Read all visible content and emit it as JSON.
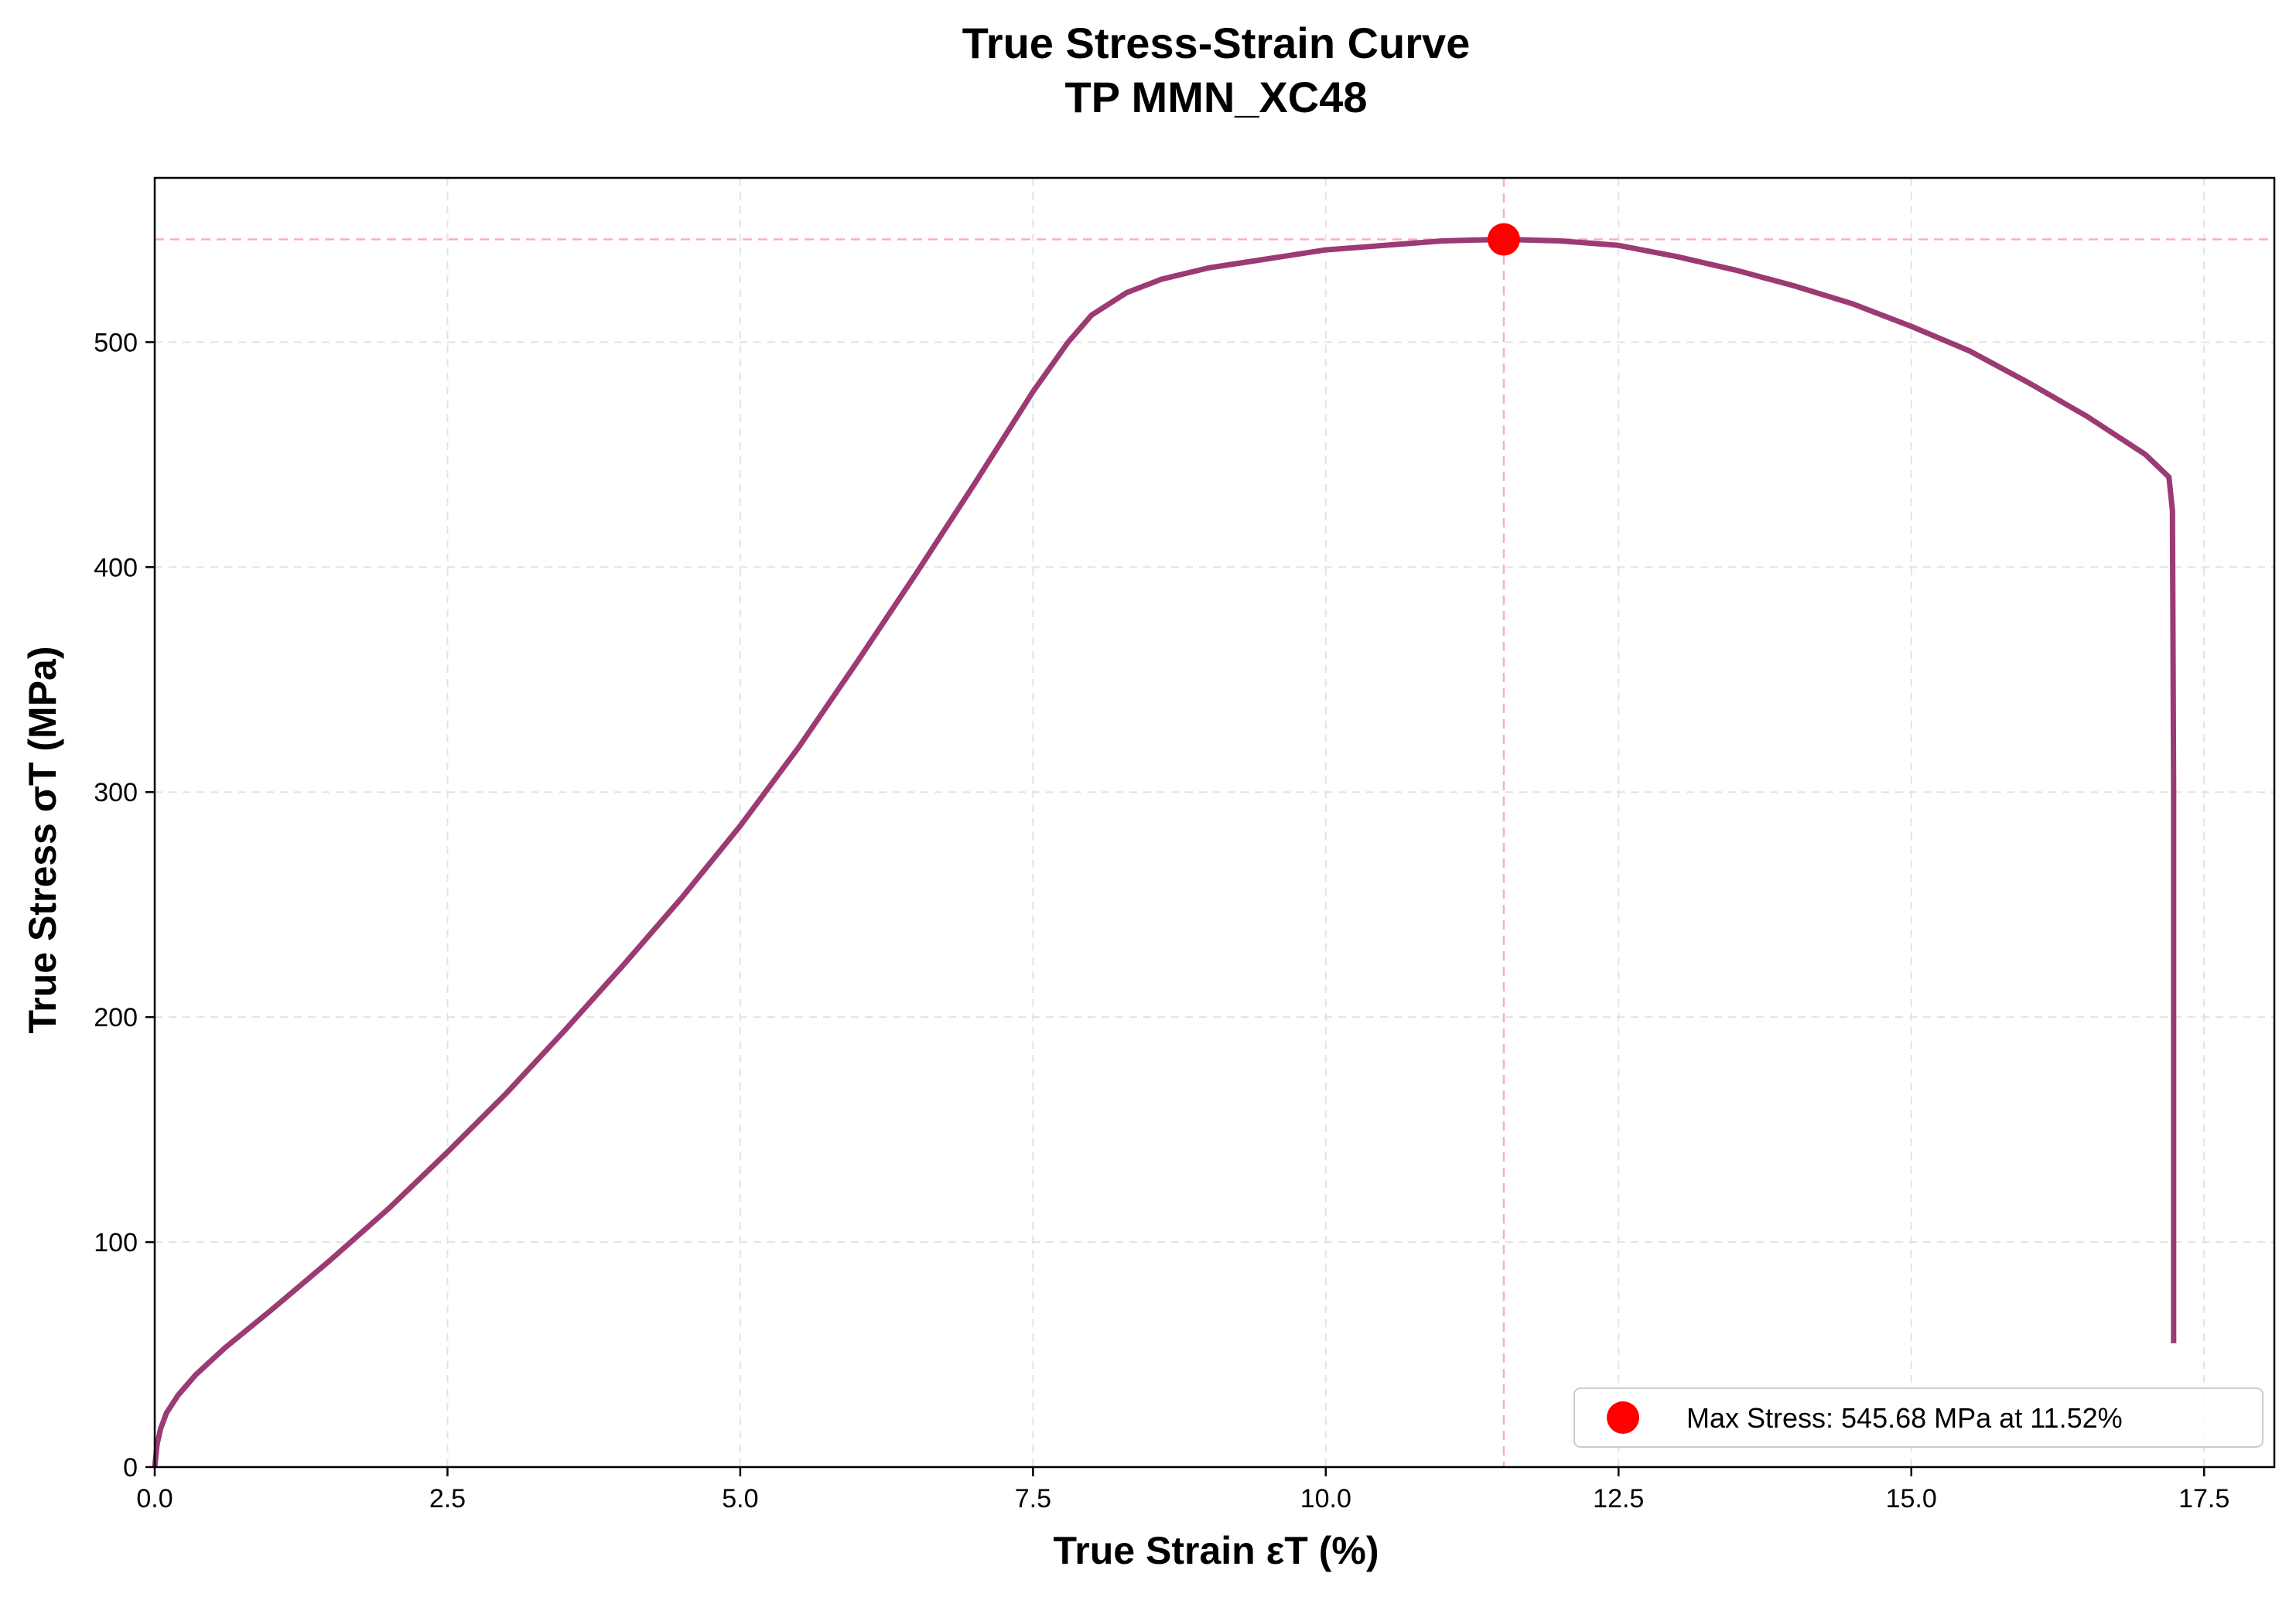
{
  "chart_data": {
    "type": "line",
    "title": "True Stress-Strain Curve",
    "subtitle": "TP MMN_XC48",
    "xlabel": "True Strain εT (%)",
    "ylabel": "True Stress σT (MPa)",
    "xlim": [
      0,
      18.1
    ],
    "ylim": [
      0,
      573
    ],
    "x_ticks": [
      0.0,
      2.5,
      5.0,
      7.5,
      10.0,
      12.5,
      15.0,
      17.5
    ],
    "x_tick_labels": [
      "0.0",
      "2.5",
      "5.0",
      "7.5",
      "10.0",
      "12.5",
      "15.0",
      "17.5"
    ],
    "y_ticks": [
      0,
      100,
      200,
      300,
      400,
      500
    ],
    "y_tick_labels": [
      "0",
      "100",
      "200",
      "300",
      "400",
      "500"
    ],
    "grid": true,
    "legend_position": "lower-right",
    "colors": {
      "curve": "#9b3a73",
      "max_marker": "#ff0000",
      "ref_line": "#ffadb5",
      "grid": "#e3e3e3"
    },
    "series": [
      {
        "name": "",
        "x": [
          0.0,
          0.02,
          0.05,
          0.1,
          0.2,
          0.35,
          0.6,
          1.0,
          1.5,
          2.0,
          2.5,
          3.0,
          3.5,
          4.0,
          4.5,
          5.0,
          5.5,
          6.0,
          6.5,
          7.0,
          7.5,
          7.8,
          8.0,
          8.3,
          8.6,
          9.0,
          9.5,
          10.0,
          10.5,
          11.0,
          11.52,
          12.0,
          12.5,
          13.0,
          13.5,
          14.0,
          14.5,
          15.0,
          15.5,
          16.0,
          16.5,
          17.0,
          17.2,
          17.23,
          17.24,
          17.24
        ],
        "y": [
          0,
          10,
          17,
          24,
          32,
          41,
          53,
          70,
          92,
          115,
          140,
          166,
          194,
          223,
          253,
          285,
          320,
          358,
          397,
          437,
          478,
          500,
          512,
          522,
          528,
          533,
          537,
          541,
          543,
          545,
          545.68,
          545,
          543,
          538,
          532,
          525,
          517,
          507,
          496,
          482,
          467,
          450,
          440,
          425,
          300,
          55
        ]
      }
    ],
    "max_point": {
      "x": 11.52,
      "y": 545.68,
      "label": "Max Stress: 545.68 MPa at 11.52%"
    }
  }
}
